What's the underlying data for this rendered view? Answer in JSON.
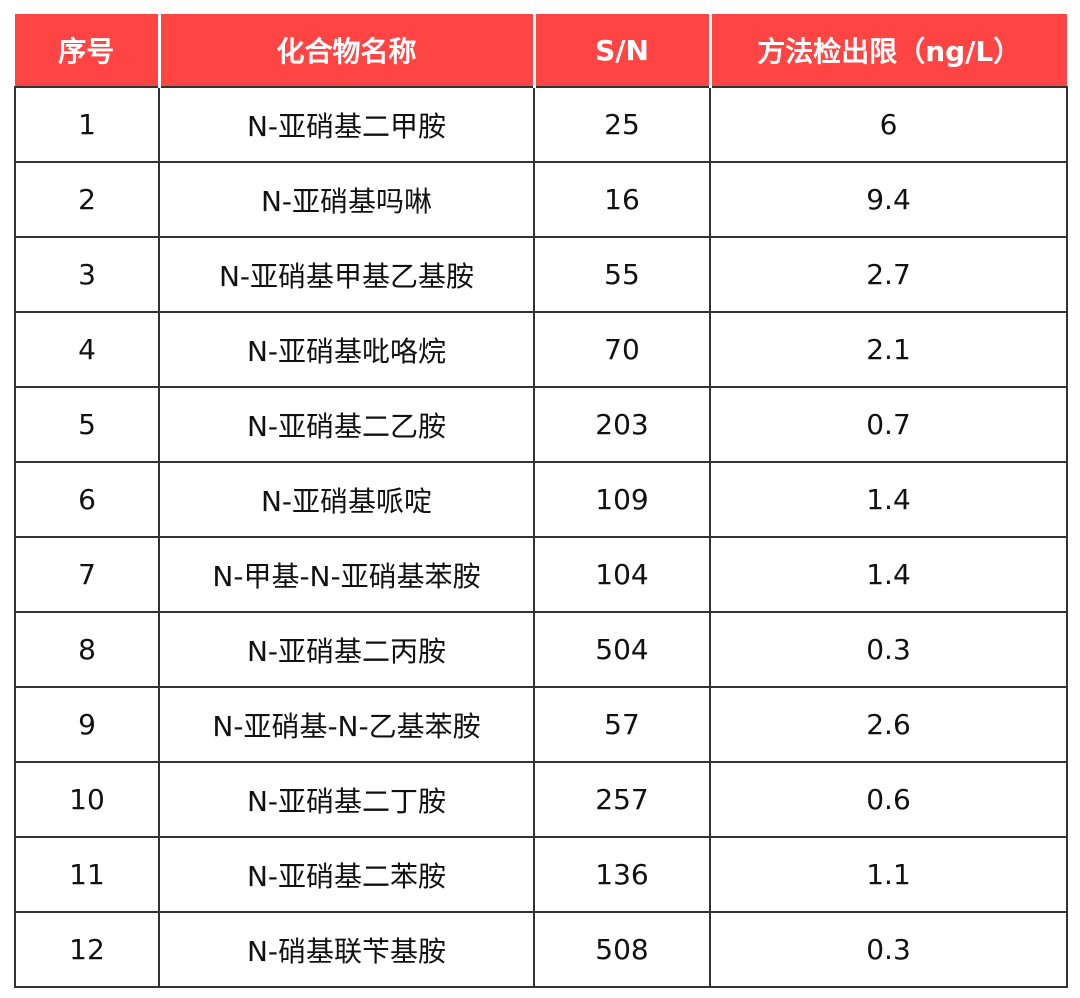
{
  "header": {
    "index": "序号",
    "name": "化合物名称",
    "sn": "S/N",
    "mdl": "方法检出限（ng/L）"
  },
  "header_color": "#ff4444",
  "rows": [
    {
      "index": "1",
      "name": "N-亚硝基二甲胺",
      "sn": "25",
      "mdl": "6"
    },
    {
      "index": "2",
      "name": "N-亚硝基吗啉",
      "sn": "16",
      "mdl": "9.4"
    },
    {
      "index": "3",
      "name": "N-亚硝基甲基乙基胺",
      "sn": "55",
      "mdl": "2.7"
    },
    {
      "index": "4",
      "name": "N-亚硝基吡咯烷",
      "sn": "70",
      "mdl": "2.1"
    },
    {
      "index": "5",
      "name": "N-亚硝基二乙胺",
      "sn": "203",
      "mdl": "0.7"
    },
    {
      "index": "6",
      "name": "N-亚硝基哌啶",
      "sn": "109",
      "mdl": "1.4"
    },
    {
      "index": "7",
      "name": "N-甲基-N-亚硝基苯胺",
      "sn": "104",
      "mdl": "1.4"
    },
    {
      "index": "8",
      "name": "N-亚硝基二丙胺",
      "sn": "504",
      "mdl": "0.3"
    },
    {
      "index": "9",
      "name": "N-亚硝基-N-乙基苯胺",
      "sn": "57",
      "mdl": "2.6"
    },
    {
      "index": "10",
      "name": "N-亚硝基二丁胺",
      "sn": "257",
      "mdl": "0.6"
    },
    {
      "index": "11",
      "name": "N-亚硝基二苯胺",
      "sn": "136",
      "mdl": "1.1"
    },
    {
      "index": "12",
      "name": "N-硝基联苄基胺",
      "sn": "508",
      "mdl": "0.3"
    }
  ]
}
